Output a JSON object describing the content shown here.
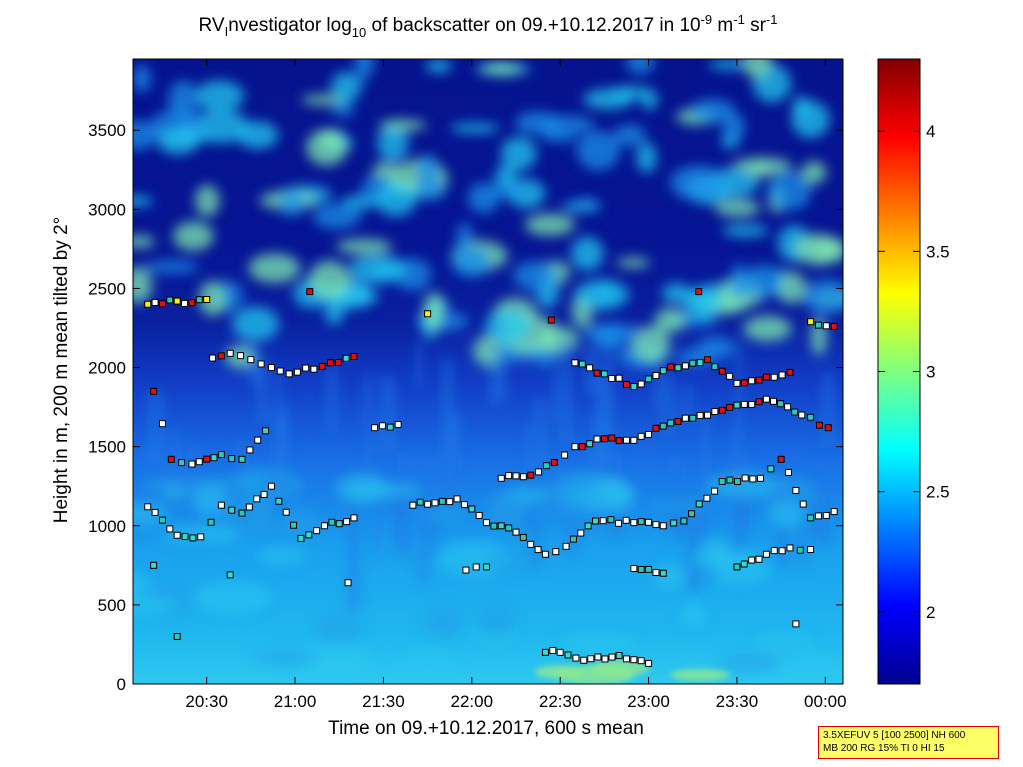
{
  "chart_data": {
    "type": "heatmap",
    "title": {
      "part1": "RV",
      "sub1": "I",
      "part2": "nvestigator log",
      "sub2": "10",
      "part3": " of backscatter on 09.+10.12.2017 in 10",
      "sup1": "-9",
      "part4": " m",
      "sup2": "-1",
      "part5": " sr",
      "sup3": "-1"
    },
    "xlabel": "Time on 09.+10.12.2017, 600 s mean",
    "ylabel": "Height in m, 200 m mean tilted by 2°",
    "x_ticks": [
      "20:30",
      "21:00",
      "21:30",
      "22:00",
      "22:30",
      "23:00",
      "23:30",
      "00:00"
    ],
    "y_ticks": [
      "0",
      "500",
      "1000",
      "1500",
      "2000",
      "2500",
      "3000",
      "3500"
    ],
    "ylim": [
      0,
      3950
    ],
    "colorbar": {
      "range": [
        1.7,
        4.3
      ],
      "ticks": [
        "2",
        "2.5",
        "3",
        "3.5",
        "4"
      ],
      "colormap": "jet"
    },
    "layers": [
      {
        "name": "cloud-bases-upper",
        "points": [
          [
            "20:10",
            2400
          ],
          [
            "20:20",
            2420
          ],
          [
            "20:25",
            2410
          ],
          [
            "20:30",
            2430
          ],
          [
            "21:05",
            2480
          ],
          [
            "21:45",
            2340
          ],
          [
            "22:27",
            2300
          ],
          [
            "23:17",
            2480
          ],
          [
            "23:55",
            2290
          ],
          [
            "00:03",
            2260
          ]
        ]
      },
      {
        "name": "layer-2000m",
        "points": [
          [
            "20:32",
            2060
          ],
          [
            "20:38",
            2090
          ],
          [
            "20:45",
            2050
          ],
          [
            "20:52",
            2000
          ],
          [
            "20:58",
            1960
          ],
          [
            "21:12",
            2030
          ],
          [
            "21:20",
            2070
          ],
          [
            "22:35",
            2030
          ],
          [
            "22:45",
            1960
          ],
          [
            "22:55",
            1880
          ],
          [
            "23:05",
            1980
          ],
          [
            "23:20",
            2050
          ],
          [
            "23:30",
            1900
          ],
          [
            "23:40",
            1940
          ],
          [
            "23:48",
            1970
          ]
        ]
      },
      {
        "name": "layer-1500m",
        "points": [
          [
            "20:12",
            1850
          ],
          [
            "20:18",
            1420
          ],
          [
            "20:25",
            1390
          ],
          [
            "20:35",
            1450
          ],
          [
            "20:42",
            1420
          ],
          [
            "20:50",
            1600
          ],
          [
            "21:27",
            1620
          ],
          [
            "21:35",
            1640
          ],
          [
            "22:10",
            1300
          ],
          [
            "22:20",
            1320
          ],
          [
            "22:28",
            1400
          ],
          [
            "22:35",
            1500
          ],
          [
            "22:45",
            1550
          ],
          [
            "22:55",
            1540
          ],
          [
            "23:05",
            1630
          ],
          [
            "23:15",
            1680
          ],
          [
            "23:25",
            1730
          ],
          [
            "23:40",
            1800
          ],
          [
            "23:52",
            1700
          ],
          [
            "00:01",
            1620
          ]
        ]
      },
      {
        "name": "layer-1000m",
        "points": [
          [
            "20:10",
            1120
          ],
          [
            "20:20",
            940
          ],
          [
            "20:28",
            930
          ],
          [
            "20:35",
            1130
          ],
          [
            "20:42",
            1080
          ],
          [
            "20:52",
            1250
          ],
          [
            "21:02",
            920
          ],
          [
            "21:10",
            1000
          ],
          [
            "21:20",
            1050
          ],
          [
            "21:40",
            1130
          ],
          [
            "21:55",
            1170
          ],
          [
            "22:05",
            1020
          ],
          [
            "22:15",
            960
          ],
          [
            "22:25",
            820
          ],
          [
            "22:32",
            870
          ],
          [
            "22:42",
            1030
          ],
          [
            "22:55",
            1020
          ],
          [
            "23:05",
            1000
          ],
          [
            "23:12",
            1030
          ],
          [
            "23:25",
            1280
          ],
          [
            "23:38",
            1300
          ],
          [
            "23:45",
            1420
          ],
          [
            "23:55",
            1050
          ],
          [
            "00:03",
            1090
          ]
        ]
      },
      {
        "name": "layer-700m",
        "points": [
          [
            "20:12",
            750
          ],
          [
            "20:38",
            690
          ],
          [
            "21:18",
            640
          ],
          [
            "21:58",
            720
          ],
          [
            "22:05",
            740
          ],
          [
            "22:55",
            730
          ],
          [
            "23:05",
            700
          ],
          [
            "23:30",
            740
          ],
          [
            "23:40",
            820
          ],
          [
            "23:48",
            860
          ],
          [
            "23:55",
            850
          ]
        ]
      },
      {
        "name": "layer-200m",
        "points": [
          [
            "20:20",
            300
          ],
          [
            "22:25",
            200
          ],
          [
            "22:30",
            200
          ],
          [
            "22:38",
            150
          ],
          [
            "22:50",
            180
          ],
          [
            "23:00",
            130
          ],
          [
            "23:50",
            380
          ]
        ]
      }
    ]
  },
  "info_box": {
    "line1": "3.5XEFUV 5 [100 2500] NH 600",
    "line2": "MB 200 RG 15% TI 0 HI 15"
  }
}
